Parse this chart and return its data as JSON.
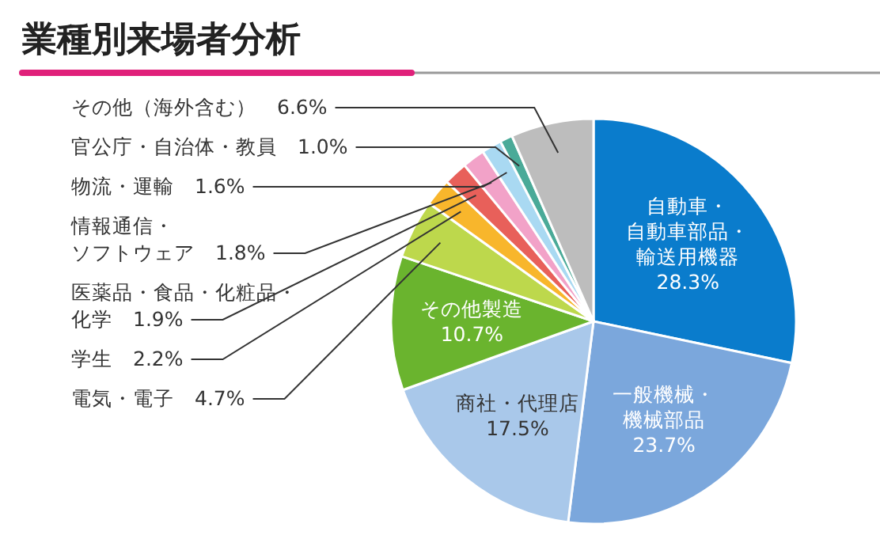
{
  "chart_data": {
    "type": "pie",
    "title": "業種別来場者分析",
    "categories": [
      "自動車・自動車部品・輸送用機器",
      "一般機械・機械部品",
      "商社・代理店",
      "その他製造",
      "電気・電子",
      "学生",
      "医薬品・食品・化粧品・化学",
      "情報通信・ソフトウェア",
      "物流・運輸",
      "官公庁・自治体・教員",
      "その他（海外含む）"
    ],
    "values": [
      28.3,
      23.7,
      17.5,
      10.7,
      4.7,
      2.2,
      1.9,
      1.8,
      1.6,
      1.0,
      6.6
    ],
    "value_labels": [
      "28.3%",
      "23.7%",
      "17.5%",
      "10.7%",
      "4.7%",
      "2.2%",
      "1.9%",
      "1.8%",
      "1.6%",
      "1.0%",
      "6.6%"
    ],
    "colors": [
      "#0a7ccc",
      "#7ba7dc",
      "#a9c8ea",
      "#6ab42e",
      "#bdd84c",
      "#f8b62c",
      "#e8605a",
      "#f2a2c8",
      "#a9d9f2",
      "#4aaa98",
      "#bdbdbd"
    ]
  }
}
